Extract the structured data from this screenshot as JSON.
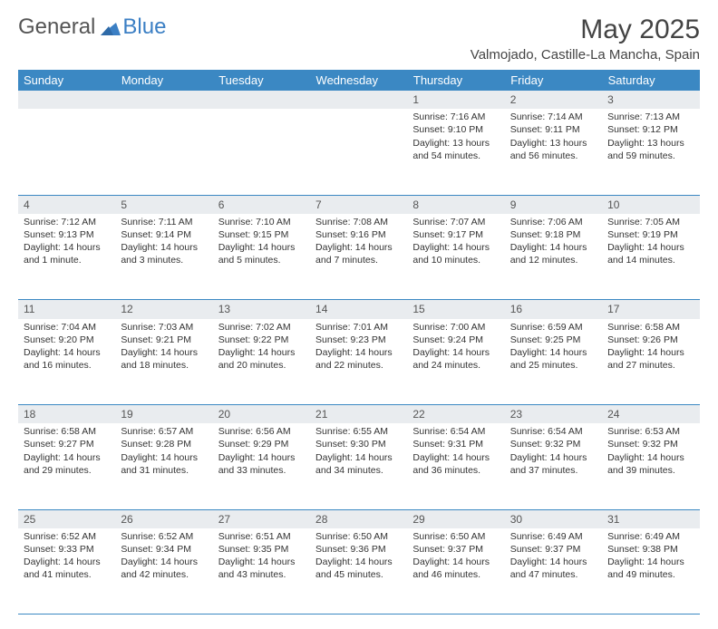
{
  "logo": {
    "part1": "General",
    "part2": "Blue"
  },
  "title": "May 2025",
  "location": "Valmojado, Castille-La Mancha, Spain",
  "colors": {
    "header_bg": "#3b88c3",
    "daynum_bg": "#e9ecef",
    "border": "#3b88c3",
    "text": "#333333"
  },
  "day_names": [
    "Sunday",
    "Monday",
    "Tuesday",
    "Wednesday",
    "Thursday",
    "Friday",
    "Saturday"
  ],
  "weeks": [
    {
      "nums": [
        "",
        "",
        "",
        "",
        "1",
        "2",
        "3"
      ],
      "cells": [
        null,
        null,
        null,
        null,
        {
          "sunrise": "7:16 AM",
          "sunset": "9:10 PM",
          "daylight": "13 hours and 54 minutes."
        },
        {
          "sunrise": "7:14 AM",
          "sunset": "9:11 PM",
          "daylight": "13 hours and 56 minutes."
        },
        {
          "sunrise": "7:13 AM",
          "sunset": "9:12 PM",
          "daylight": "13 hours and 59 minutes."
        }
      ]
    },
    {
      "nums": [
        "4",
        "5",
        "6",
        "7",
        "8",
        "9",
        "10"
      ],
      "cells": [
        {
          "sunrise": "7:12 AM",
          "sunset": "9:13 PM",
          "daylight": "14 hours and 1 minute."
        },
        {
          "sunrise": "7:11 AM",
          "sunset": "9:14 PM",
          "daylight": "14 hours and 3 minutes."
        },
        {
          "sunrise": "7:10 AM",
          "sunset": "9:15 PM",
          "daylight": "14 hours and 5 minutes."
        },
        {
          "sunrise": "7:08 AM",
          "sunset": "9:16 PM",
          "daylight": "14 hours and 7 minutes."
        },
        {
          "sunrise": "7:07 AM",
          "sunset": "9:17 PM",
          "daylight": "14 hours and 10 minutes."
        },
        {
          "sunrise": "7:06 AM",
          "sunset": "9:18 PM",
          "daylight": "14 hours and 12 minutes."
        },
        {
          "sunrise": "7:05 AM",
          "sunset": "9:19 PM",
          "daylight": "14 hours and 14 minutes."
        }
      ]
    },
    {
      "nums": [
        "11",
        "12",
        "13",
        "14",
        "15",
        "16",
        "17"
      ],
      "cells": [
        {
          "sunrise": "7:04 AM",
          "sunset": "9:20 PM",
          "daylight": "14 hours and 16 minutes."
        },
        {
          "sunrise": "7:03 AM",
          "sunset": "9:21 PM",
          "daylight": "14 hours and 18 minutes."
        },
        {
          "sunrise": "7:02 AM",
          "sunset": "9:22 PM",
          "daylight": "14 hours and 20 minutes."
        },
        {
          "sunrise": "7:01 AM",
          "sunset": "9:23 PM",
          "daylight": "14 hours and 22 minutes."
        },
        {
          "sunrise": "7:00 AM",
          "sunset": "9:24 PM",
          "daylight": "14 hours and 24 minutes."
        },
        {
          "sunrise": "6:59 AM",
          "sunset": "9:25 PM",
          "daylight": "14 hours and 25 minutes."
        },
        {
          "sunrise": "6:58 AM",
          "sunset": "9:26 PM",
          "daylight": "14 hours and 27 minutes."
        }
      ]
    },
    {
      "nums": [
        "18",
        "19",
        "20",
        "21",
        "22",
        "23",
        "24"
      ],
      "cells": [
        {
          "sunrise": "6:58 AM",
          "sunset": "9:27 PM",
          "daylight": "14 hours and 29 minutes."
        },
        {
          "sunrise": "6:57 AM",
          "sunset": "9:28 PM",
          "daylight": "14 hours and 31 minutes."
        },
        {
          "sunrise": "6:56 AM",
          "sunset": "9:29 PM",
          "daylight": "14 hours and 33 minutes."
        },
        {
          "sunrise": "6:55 AM",
          "sunset": "9:30 PM",
          "daylight": "14 hours and 34 minutes."
        },
        {
          "sunrise": "6:54 AM",
          "sunset": "9:31 PM",
          "daylight": "14 hours and 36 minutes."
        },
        {
          "sunrise": "6:54 AM",
          "sunset": "9:32 PM",
          "daylight": "14 hours and 37 minutes."
        },
        {
          "sunrise": "6:53 AM",
          "sunset": "9:32 PM",
          "daylight": "14 hours and 39 minutes."
        }
      ]
    },
    {
      "nums": [
        "25",
        "26",
        "27",
        "28",
        "29",
        "30",
        "31"
      ],
      "cells": [
        {
          "sunrise": "6:52 AM",
          "sunset": "9:33 PM",
          "daylight": "14 hours and 41 minutes."
        },
        {
          "sunrise": "6:52 AM",
          "sunset": "9:34 PM",
          "daylight": "14 hours and 42 minutes."
        },
        {
          "sunrise": "6:51 AM",
          "sunset": "9:35 PM",
          "daylight": "14 hours and 43 minutes."
        },
        {
          "sunrise": "6:50 AM",
          "sunset": "9:36 PM",
          "daylight": "14 hours and 45 minutes."
        },
        {
          "sunrise": "6:50 AM",
          "sunset": "9:37 PM",
          "daylight": "14 hours and 46 minutes."
        },
        {
          "sunrise": "6:49 AM",
          "sunset": "9:37 PM",
          "daylight": "14 hours and 47 minutes."
        },
        {
          "sunrise": "6:49 AM",
          "sunset": "9:38 PM",
          "daylight": "14 hours and 49 minutes."
        }
      ]
    }
  ],
  "labels": {
    "sunrise": "Sunrise: ",
    "sunset": "Sunset: ",
    "daylight": "Daylight: "
  }
}
